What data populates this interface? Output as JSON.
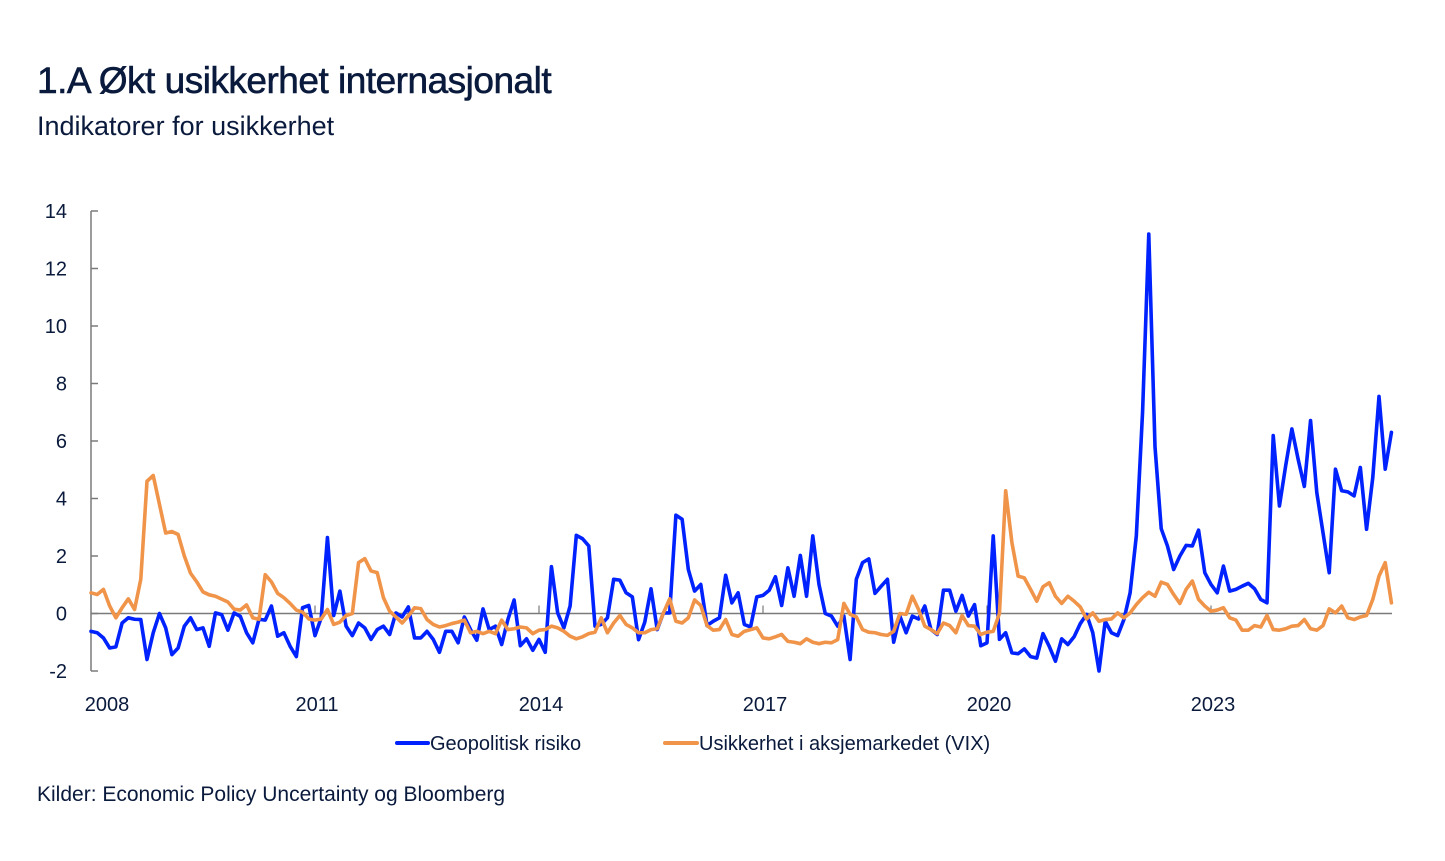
{
  "header": {
    "title": "1.A Økt usikkerhet internasjonalt",
    "subtitle": "Indikatorer for usikkerhet"
  },
  "footer": {
    "source": "Kilder: Economic Policy Uncertainty og Bloomberg"
  },
  "chart_data": {
    "type": "line",
    "title": "1.A Økt usikkerhet internasjonalt",
    "subtitle": "Indikatorer for usikkerhet",
    "xlabel": "",
    "ylabel": "",
    "x_start": "2008-01",
    "x_frequency": "monthly",
    "x_end": "2025-06",
    "x_tick_labels": [
      "2008",
      "2011",
      "2014",
      "2017",
      "2020",
      "2023"
    ],
    "y_tick_labels": [
      "-2",
      "0",
      "2",
      "4",
      "6",
      "8",
      "10",
      "12",
      "14"
    ],
    "y_ticks": [
      -2,
      0,
      2,
      4,
      6,
      8,
      10,
      12,
      14
    ],
    "ylim": [
      -2,
      14
    ],
    "xlim": [
      "2008-01",
      "2025-06"
    ],
    "grid": false,
    "zero_line": true,
    "legend_position": "bottom",
    "series": [
      {
        "name": "Geopolitisk risiko",
        "color": "#0022ff",
        "values": [
          -0.62,
          -0.67,
          -0.85,
          -1.2,
          -1.16,
          -0.33,
          -0.15,
          -0.2,
          -0.21,
          -1.6,
          -0.67,
          0.0,
          -0.5,
          -1.43,
          -1.2,
          -0.44,
          -0.15,
          -0.56,
          -0.5,
          -1.14,
          0.02,
          -0.04,
          -0.58,
          0.02,
          -0.1,
          -0.67,
          -1.02,
          -0.2,
          -0.23,
          0.26,
          -0.79,
          -0.67,
          -1.14,
          -1.5,
          0.2,
          0.28,
          -0.77,
          -0.15,
          2.64,
          -0.07,
          0.78,
          -0.44,
          -0.77,
          -0.33,
          -0.5,
          -0.9,
          -0.56,
          -0.44,
          -0.73,
          0.02,
          -0.12,
          0.23,
          -0.85,
          -0.85,
          -0.62,
          -0.9,
          -1.35,
          -0.62,
          -0.62,
          -1.02,
          -0.12,
          -0.56,
          -0.93,
          0.16,
          -0.56,
          -0.44,
          -1.08,
          -0.21,
          0.47,
          -1.12,
          -0.88,
          -1.28,
          -0.9,
          -1.35,
          1.63,
          0.02,
          -0.5,
          0.26,
          2.72,
          2.6,
          2.35,
          -0.44,
          -0.38,
          -0.15,
          1.19,
          1.16,
          0.72,
          0.58,
          -0.91,
          -0.3,
          0.86,
          -0.56,
          0.02,
          0.02,
          3.42,
          3.28,
          1.53,
          0.78,
          1.01,
          -0.42,
          -0.27,
          -0.15,
          1.33,
          0.37,
          0.72,
          -0.38,
          -0.47,
          0.58,
          0.63,
          0.81,
          1.28,
          0.28,
          1.59,
          0.6,
          2.02,
          0.6,
          2.7,
          1.01,
          0.0,
          -0.09,
          -0.44,
          -0.09,
          -1.6,
          1.19,
          1.77,
          1.9,
          0.7,
          0.95,
          1.19,
          -1.0,
          -0.09,
          -0.67,
          -0.09,
          -0.19,
          0.26,
          -0.56,
          -0.73,
          0.81,
          0.81,
          0.08,
          0.63,
          -0.09,
          0.31,
          -1.12,
          -1.02,
          2.7,
          -0.9,
          -0.67,
          -1.37,
          -1.4,
          -1.23,
          -1.5,
          -1.55,
          -0.7,
          -1.14,
          -1.66,
          -0.88,
          -1.08,
          -0.81,
          -0.35,
          -0.03,
          -0.67,
          -2.0,
          -0.27,
          -0.67,
          -0.77,
          -0.21,
          0.72,
          2.7,
          7.0,
          13.2,
          5.8,
          2.95,
          2.35,
          1.53,
          2.0,
          2.37,
          2.35,
          2.9,
          1.42,
          1.01,
          0.72,
          1.65,
          0.78,
          0.84,
          0.95,
          1.05,
          0.86,
          0.49,
          0.37,
          6.19,
          3.74,
          5.14,
          6.42,
          5.37,
          4.42,
          6.71,
          4.21,
          2.81,
          1.42,
          5.02,
          4.27,
          4.23,
          4.09,
          5.08,
          2.93,
          4.73,
          7.55,
          5.02,
          6.3
        ]
      },
      {
        "name": "Usikkerhet i aksjemarkedet (VIX)",
        "color": "#f0944a",
        "values": [
          0.72,
          0.66,
          0.84,
          0.26,
          -0.15,
          0.2,
          0.51,
          0.14,
          1.19,
          4.6,
          4.8,
          3.8,
          2.8,
          2.85,
          2.75,
          2.0,
          1.4,
          1.1,
          0.75,
          0.65,
          0.6,
          0.5,
          0.4,
          0.15,
          0.12,
          0.3,
          -0.15,
          -0.2,
          1.35,
          1.1,
          0.7,
          0.55,
          0.35,
          0.12,
          0.05,
          -0.19,
          -0.23,
          -0.19,
          0.14,
          -0.38,
          -0.3,
          -0.07,
          0.0,
          1.77,
          1.91,
          1.48,
          1.42,
          0.55,
          0.08,
          -0.12,
          -0.33,
          -0.09,
          0.2,
          0.17,
          -0.21,
          -0.38,
          -0.47,
          -0.42,
          -0.35,
          -0.3,
          -0.23,
          -0.67,
          -0.62,
          -0.7,
          -0.62,
          -0.7,
          -0.23,
          -0.56,
          -0.53,
          -0.47,
          -0.5,
          -0.7,
          -0.58,
          -0.56,
          -0.44,
          -0.5,
          -0.62,
          -0.79,
          -0.88,
          -0.81,
          -0.7,
          -0.65,
          -0.15,
          -0.67,
          -0.33,
          -0.07,
          -0.38,
          -0.5,
          -0.67,
          -0.67,
          -0.56,
          -0.53,
          0.02,
          0.51,
          -0.27,
          -0.33,
          -0.15,
          0.47,
          0.28,
          -0.42,
          -0.58,
          -0.56,
          -0.21,
          -0.73,
          -0.79,
          -0.62,
          -0.56,
          -0.5,
          -0.85,
          -0.88,
          -0.81,
          -0.73,
          -0.97,
          -1.0,
          -1.05,
          -0.88,
          -1.0,
          -1.05,
          -1.0,
          -1.02,
          -0.91,
          0.35,
          -0.03,
          -0.12,
          -0.56,
          -0.65,
          -0.67,
          -0.73,
          -0.76,
          -0.62,
          0.0,
          -0.03,
          0.6,
          0.14,
          -0.44,
          -0.56,
          -0.7,
          -0.33,
          -0.42,
          -0.67,
          -0.07,
          -0.42,
          -0.44,
          -0.73,
          -0.65,
          -0.62,
          0.0,
          4.27,
          2.47,
          1.3,
          1.24,
          0.84,
          0.43,
          0.93,
          1.07,
          0.6,
          0.35,
          0.6,
          0.43,
          0.23,
          -0.19,
          0.02,
          -0.27,
          -0.21,
          -0.19,
          0.02,
          -0.15,
          0.02,
          0.31,
          0.55,
          0.74,
          0.6,
          1.09,
          1.01,
          0.66,
          0.35,
          0.84,
          1.13,
          0.49,
          0.26,
          0.08,
          0.12,
          0.2,
          -0.15,
          -0.23,
          -0.58,
          -0.58,
          -0.42,
          -0.47,
          -0.07,
          -0.56,
          -0.58,
          -0.53,
          -0.44,
          -0.42,
          -0.21,
          -0.53,
          -0.58,
          -0.42,
          0.16,
          0.02,
          0.26,
          -0.15,
          -0.21,
          -0.12,
          -0.07,
          0.49,
          1.3,
          1.77,
          0.37
        ]
      }
    ]
  }
}
